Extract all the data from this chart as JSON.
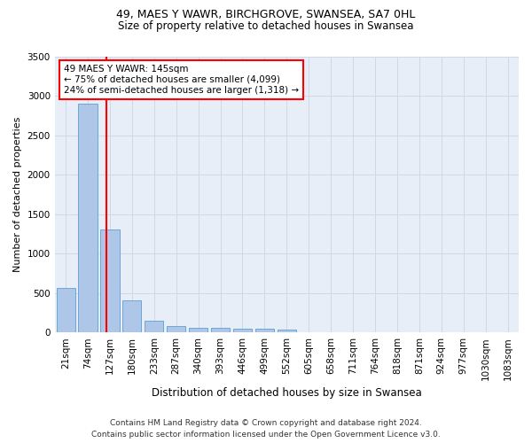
{
  "title_line1": "49, MAES Y WAWR, BIRCHGROVE, SWANSEA, SA7 0HL",
  "title_line2": "Size of property relative to detached houses in Swansea",
  "xlabel": "Distribution of detached houses by size in Swansea",
  "ylabel": "Number of detached properties",
  "footnote": "Contains HM Land Registry data © Crown copyright and database right 2024.\nContains public sector information licensed under the Open Government Licence v3.0.",
  "bin_labels": [
    "21sqm",
    "74sqm",
    "127sqm",
    "180sqm",
    "233sqm",
    "287sqm",
    "340sqm",
    "393sqm",
    "446sqm",
    "499sqm",
    "552sqm",
    "605sqm",
    "658sqm",
    "711sqm",
    "764sqm",
    "818sqm",
    "871sqm",
    "924sqm",
    "977sqm",
    "1030sqm",
    "1083sqm"
  ],
  "bar_values": [
    560,
    2900,
    1310,
    410,
    150,
    85,
    60,
    55,
    45,
    45,
    35,
    0,
    0,
    0,
    0,
    0,
    0,
    0,
    0,
    0,
    0
  ],
  "bar_color": "#aec6e8",
  "bar_edge_color": "#5a9fd4",
  "grid_color": "#d0d8e8",
  "background_color": "#e8eef8",
  "vline_x": 1.85,
  "property_line_label": "49 MAES Y WAWR: 145sqm",
  "annotation_line1": "← 75% of detached houses are smaller (4,099)",
  "annotation_line2": "24% of semi-detached houses are larger (1,318) →",
  "vline_color": "red",
  "annotation_box_color": "red",
  "ylim": [
    0,
    3500
  ],
  "yticks": [
    0,
    500,
    1000,
    1500,
    2000,
    2500,
    3000,
    3500
  ],
  "title_fontsize": 9,
  "subtitle_fontsize": 8.5,
  "ylabel_fontsize": 8,
  "xlabel_fontsize": 8.5,
  "footnote_fontsize": 6.5,
  "tick_fontsize": 7.5,
  "annotation_fontsize": 7.5
}
